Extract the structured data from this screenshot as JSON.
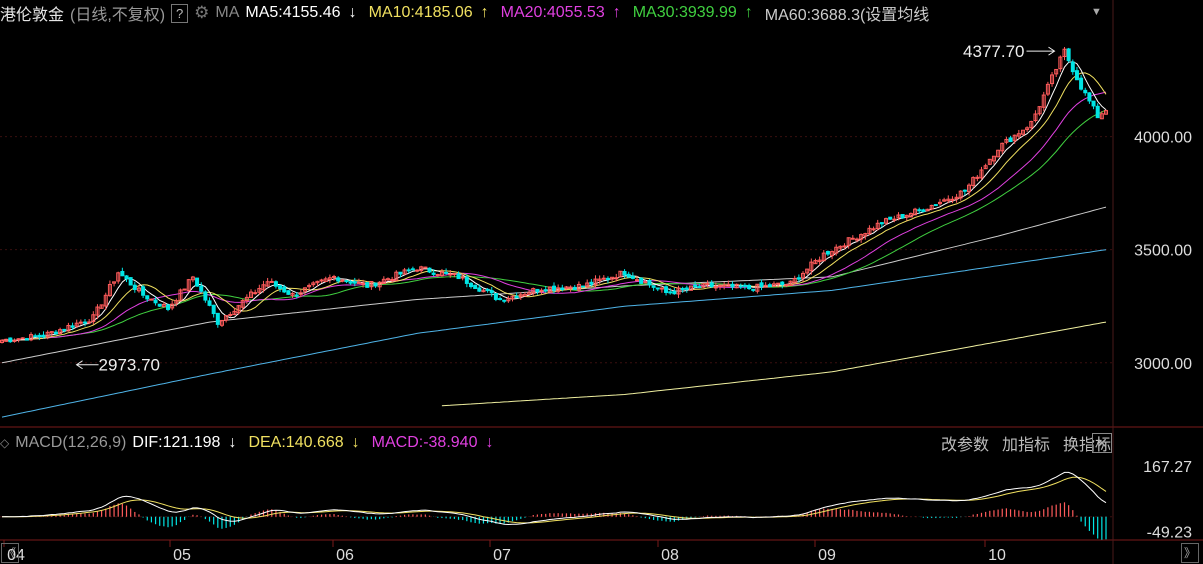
{
  "header": {
    "name": "港伦敦金",
    "mode": "(日线,不复权)",
    "help": "?",
    "ma_label": "MA",
    "ma": [
      {
        "label": "MA5:4155.46",
        "arrow": "↓",
        "color": "#ffffff"
      },
      {
        "label": "MA10:4185.06",
        "arrow": "↑",
        "color": "#f0e060"
      },
      {
        "label": "MA20:4055.53",
        "arrow": "↑",
        "color": "#e040e0"
      },
      {
        "label": "MA30:3939.99",
        "arrow": "↑",
        "color": "#40d040"
      },
      {
        "label": "MA60:3688.3(设置均线",
        "arrow": "",
        "color": "#cccccc"
      }
    ]
  },
  "macd_header": {
    "toggle": "◇",
    "name": "MACD(12,26,9)",
    "dif": "DIF:121.198",
    "dif_arrow": "↓",
    "dea": "DEA:140.668",
    "dea_arrow": "↓",
    "macd": "MACD:-38.940",
    "macd_arrow": "↓",
    "buttons": [
      "改参数",
      "加指标",
      "换指标"
    ],
    "close": "✕"
  },
  "colors": {
    "up": "#ff5b5b",
    "down": "#00e5e5",
    "ma5": "#ffffff",
    "ma10": "#f0e060",
    "ma20": "#e040e0",
    "ma30": "#40d040",
    "ma60": "#cccccc",
    "ma120": "#4fb4e8",
    "ma250": "#f0f0a0",
    "dif": "#ffffff",
    "dea": "#f0e060"
  },
  "nav": {
    "left": "《",
    "right": "》"
  },
  "chart_data": {
    "type": "candlestick",
    "x_axis": {
      "ticks": [
        "04",
        "05",
        "06",
        "07",
        "08",
        "09",
        "10"
      ]
    },
    "price_axis": {
      "ticks": [
        4000.0,
        3500.0,
        3000.0
      ],
      "tick_labels": [
        "4000.00",
        "3500.00",
        "3000.00"
      ],
      "range": [
        2725,
        4480
      ]
    },
    "annotations": [
      {
        "text": "4377.70",
        "value": 4377.7,
        "type": "high"
      },
      {
        "text": "2973.70",
        "value": 2973.7,
        "type": "low"
      }
    ],
    "macd_axis": {
      "ticks": [
        167.27,
        -49.23
      ],
      "tick_labels": [
        "167.27",
        "-49.23"
      ],
      "range": [
        -70,
        200
      ]
    },
    "series": [
      {
        "name": "MA5",
        "last": 4155.46
      },
      {
        "name": "MA10",
        "last": 4185.06
      },
      {
        "name": "MA20",
        "last": 4055.53
      },
      {
        "name": "MA30",
        "last": 3939.99
      },
      {
        "name": "MA60",
        "last": 3688.3
      }
    ],
    "macd": {
      "dif": 121.198,
      "dea": 140.668,
      "macd": -38.94
    },
    "price_keypoints": [
      [
        0,
        3100
      ],
      [
        10,
        3120
      ],
      [
        22,
        3200
      ],
      [
        28,
        3400
      ],
      [
        34,
        3300
      ],
      [
        40,
        3240
      ],
      [
        46,
        3380
      ],
      [
        52,
        3180
      ],
      [
        58,
        3270
      ],
      [
        64,
        3360
      ],
      [
        70,
        3300
      ],
      [
        80,
        3380
      ],
      [
        88,
        3340
      ],
      [
        100,
        3420
      ],
      [
        110,
        3380
      ],
      [
        120,
        3280
      ],
      [
        130,
        3330
      ],
      [
        140,
        3340
      ],
      [
        150,
        3400
      ],
      [
        160,
        3310
      ],
      [
        170,
        3340
      ],
      [
        180,
        3330
      ],
      [
        190,
        3350
      ],
      [
        198,
        3480
      ],
      [
        204,
        3540
      ],
      [
        212,
        3620
      ],
      [
        222,
        3680
      ],
      [
        232,
        3760
      ],
      [
        240,
        3950
      ],
      [
        248,
        4060
      ],
      [
        254,
        4300
      ],
      [
        256,
        4377.7
      ],
      [
        260,
        4220
      ],
      [
        264,
        4090
      ],
      [
        266,
        4120
      ]
    ],
    "ma_keypoints": {
      "MA60": [
        [
          0,
          3000
        ],
        [
          50,
          3180
        ],
        [
          100,
          3280
        ],
        [
          150,
          3340
        ],
        [
          200,
          3380
        ],
        [
          240,
          3560
        ],
        [
          266,
          3688.3
        ]
      ],
      "MA120": [
        [
          0,
          2760
        ],
        [
          50,
          2950
        ],
        [
          100,
          3130
        ],
        [
          150,
          3250
        ],
        [
          200,
          3320
        ],
        [
          266,
          3500
        ]
      ],
      "MA250": [
        [
          106,
          2810
        ],
        [
          150,
          2860
        ],
        [
          200,
          2960
        ],
        [
          266,
          3180
        ]
      ]
    }
  }
}
